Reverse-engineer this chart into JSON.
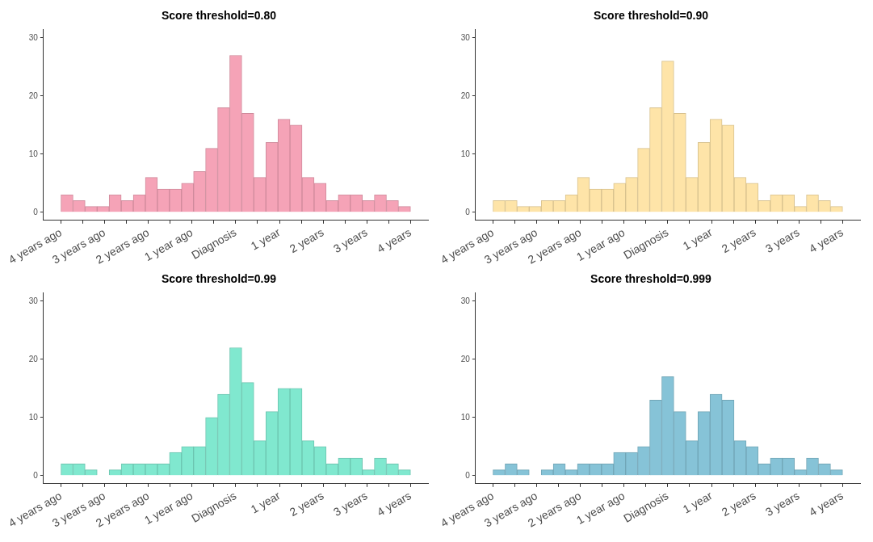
{
  "chart_data": [
    {
      "type": "histogram",
      "title": "Score threshold=0.80",
      "color": "#f5a3b7",
      "bins": [
        -4,
        -3.724,
        -3.448,
        -3.172,
        -2.897,
        -2.621,
        -2.345,
        -2.069,
        -1.793,
        -1.517,
        -1.241,
        -0.966,
        -0.69,
        -0.414,
        -0.138,
        0.138,
        0.414,
        0.69,
        0.966,
        1.241,
        1.517,
        1.793,
        2.069,
        2.345,
        2.621,
        2.897,
        3.172,
        3.448,
        3.724,
        4
      ],
      "values": [
        3,
        2,
        1,
        1,
        3,
        2,
        3,
        6,
        4,
        4,
        5,
        7,
        11,
        18,
        27,
        17,
        6,
        12,
        16,
        15,
        6,
        5,
        2,
        3,
        3,
        2,
        3,
        2,
        1
      ],
      "xlim": [
        -4.4,
        4.4
      ],
      "xticks": [
        {
          "value": -4,
          "label": "4 years ago"
        },
        {
          "value": -3.5,
          "label": null
        },
        {
          "value": -3,
          "label": "3 years ago"
        },
        {
          "value": -2.5,
          "label": null
        },
        {
          "value": -2,
          "label": "2 years ago"
        },
        {
          "value": -1.5,
          "label": null
        },
        {
          "value": -1,
          "label": "1 year ago"
        },
        {
          "value": -0.5,
          "label": null
        },
        {
          "value": 0,
          "label": "Diagnosis"
        },
        {
          "value": 0.5,
          "label": null
        },
        {
          "value": 1,
          "label": "1 year"
        },
        {
          "value": 1.5,
          "label": null
        },
        {
          "value": 2,
          "label": "2 years"
        },
        {
          "value": 2.5,
          "label": null
        },
        {
          "value": 3,
          "label": "3 years"
        },
        {
          "value": 3.5,
          "label": null
        },
        {
          "value": 4,
          "label": "4 years"
        }
      ],
      "ylim": [
        -1.4,
        31.4
      ],
      "yticks": [
        0,
        10,
        20,
        30
      ],
      "grid": false
    },
    {
      "type": "histogram",
      "title": "Score threshold=0.90",
      "color": "#fee4a8",
      "bins": [
        -4,
        -3.724,
        -3.448,
        -3.172,
        -2.897,
        -2.621,
        -2.345,
        -2.069,
        -1.793,
        -1.517,
        -1.241,
        -0.966,
        -0.69,
        -0.414,
        -0.138,
        0.138,
        0.414,
        0.69,
        0.966,
        1.241,
        1.517,
        1.793,
        2.069,
        2.345,
        2.621,
        2.897,
        3.172,
        3.448,
        3.724,
        4
      ],
      "values": [
        2,
        2,
        1,
        1,
        2,
        2,
        3,
        6,
        4,
        4,
        5,
        6,
        11,
        18,
        26,
        17,
        6,
        12,
        16,
        15,
        6,
        5,
        2,
        3,
        3,
        1,
        3,
        2,
        1
      ],
      "xlim": [
        -4.4,
        4.4
      ],
      "xticks": [
        {
          "value": -4,
          "label": "4 years ago"
        },
        {
          "value": -3.5,
          "label": null
        },
        {
          "value": -3,
          "label": "3 years ago"
        },
        {
          "value": -2.5,
          "label": null
        },
        {
          "value": -2,
          "label": "2 years ago"
        },
        {
          "value": -1.5,
          "label": null
        },
        {
          "value": -1,
          "label": "1 year ago"
        },
        {
          "value": -0.5,
          "label": null
        },
        {
          "value": 0,
          "label": "Diagnosis"
        },
        {
          "value": 0.5,
          "label": null
        },
        {
          "value": 1,
          "label": "1 year"
        },
        {
          "value": 1.5,
          "label": null
        },
        {
          "value": 2,
          "label": "2 years"
        },
        {
          "value": 2.5,
          "label": null
        },
        {
          "value": 3,
          "label": "3 years"
        },
        {
          "value": 3.5,
          "label": null
        },
        {
          "value": 4,
          "label": "4 years"
        }
      ],
      "ylim": [
        -1.4,
        31.4
      ],
      "yticks": [
        0,
        10,
        20,
        30
      ],
      "grid": false
    },
    {
      "type": "histogram",
      "title": "Score threshold=0.99",
      "color": "#80e8cf",
      "bins": [
        -4,
        -3.724,
        -3.448,
        -3.172,
        -2.897,
        -2.621,
        -2.345,
        -2.069,
        -1.793,
        -1.517,
        -1.241,
        -0.966,
        -0.69,
        -0.414,
        -0.138,
        0.138,
        0.414,
        0.69,
        0.966,
        1.241,
        1.517,
        1.793,
        2.069,
        2.345,
        2.621,
        2.897,
        3.172,
        3.448,
        3.724,
        4
      ],
      "values": [
        2,
        2,
        1,
        0,
        1,
        2,
        2,
        2,
        2,
        4,
        5,
        5,
        10,
        14,
        22,
        16,
        6,
        11,
        15,
        15,
        6,
        5,
        2,
        3,
        3,
        1,
        3,
        2,
        1
      ],
      "xlim": [
        -4.4,
        4.4
      ],
      "xticks": [
        {
          "value": -4,
          "label": "4 years ago"
        },
        {
          "value": -3.5,
          "label": null
        },
        {
          "value": -3,
          "label": "3 years ago"
        },
        {
          "value": -2.5,
          "label": null
        },
        {
          "value": -2,
          "label": "2 years ago"
        },
        {
          "value": -1.5,
          "label": null
        },
        {
          "value": -1,
          "label": "1 year ago"
        },
        {
          "value": -0.5,
          "label": null
        },
        {
          "value": 0,
          "label": "Diagnosis"
        },
        {
          "value": 0.5,
          "label": null
        },
        {
          "value": 1,
          "label": "1 year"
        },
        {
          "value": 1.5,
          "label": null
        },
        {
          "value": 2,
          "label": "2 years"
        },
        {
          "value": 2.5,
          "label": null
        },
        {
          "value": 3,
          "label": "3 years"
        },
        {
          "value": 3.5,
          "label": null
        },
        {
          "value": 4,
          "label": "4 years"
        }
      ],
      "ylim": [
        -1.4,
        31.4
      ],
      "yticks": [
        0,
        10,
        20,
        30
      ],
      "grid": false
    },
    {
      "type": "histogram",
      "title": "Score threshold=0.999",
      "color": "#86c3d7",
      "bins": [
        -4,
        -3.724,
        -3.448,
        -3.172,
        -2.897,
        -2.621,
        -2.345,
        -2.069,
        -1.793,
        -1.517,
        -1.241,
        -0.966,
        -0.69,
        -0.414,
        -0.138,
        0.138,
        0.414,
        0.69,
        0.966,
        1.241,
        1.517,
        1.793,
        2.069,
        2.345,
        2.621,
        2.897,
        3.172,
        3.448,
        3.724,
        4
      ],
      "values": [
        1,
        2,
        1,
        0,
        1,
        2,
        1,
        2,
        2,
        2,
        4,
        4,
        5,
        13,
        17,
        11,
        6,
        11,
        14,
        13,
        6,
        5,
        2,
        3,
        3,
        1,
        3,
        2,
        1
      ],
      "xlim": [
        -4.4,
        4.4
      ],
      "xticks": [
        {
          "value": -4,
          "label": "4 years ago"
        },
        {
          "value": -3.5,
          "label": null
        },
        {
          "value": -3,
          "label": "3 years ago"
        },
        {
          "value": -2.5,
          "label": null
        },
        {
          "value": -2,
          "label": "2 years ago"
        },
        {
          "value": -1.5,
          "label": null
        },
        {
          "value": -1,
          "label": "1 year ago"
        },
        {
          "value": -0.5,
          "label": null
        },
        {
          "value": 0,
          "label": "Diagnosis"
        },
        {
          "value": 0.5,
          "label": null
        },
        {
          "value": 1,
          "label": "1 year"
        },
        {
          "value": 1.5,
          "label": null
        },
        {
          "value": 2,
          "label": "2 years"
        },
        {
          "value": 2.5,
          "label": null
        },
        {
          "value": 3,
          "label": "3 years"
        },
        {
          "value": 3.5,
          "label": null
        },
        {
          "value": 4,
          "label": "4 years"
        }
      ],
      "ylim": [
        -1.4,
        31.4
      ],
      "yticks": [
        0,
        10,
        20,
        30
      ],
      "grid": false
    }
  ]
}
